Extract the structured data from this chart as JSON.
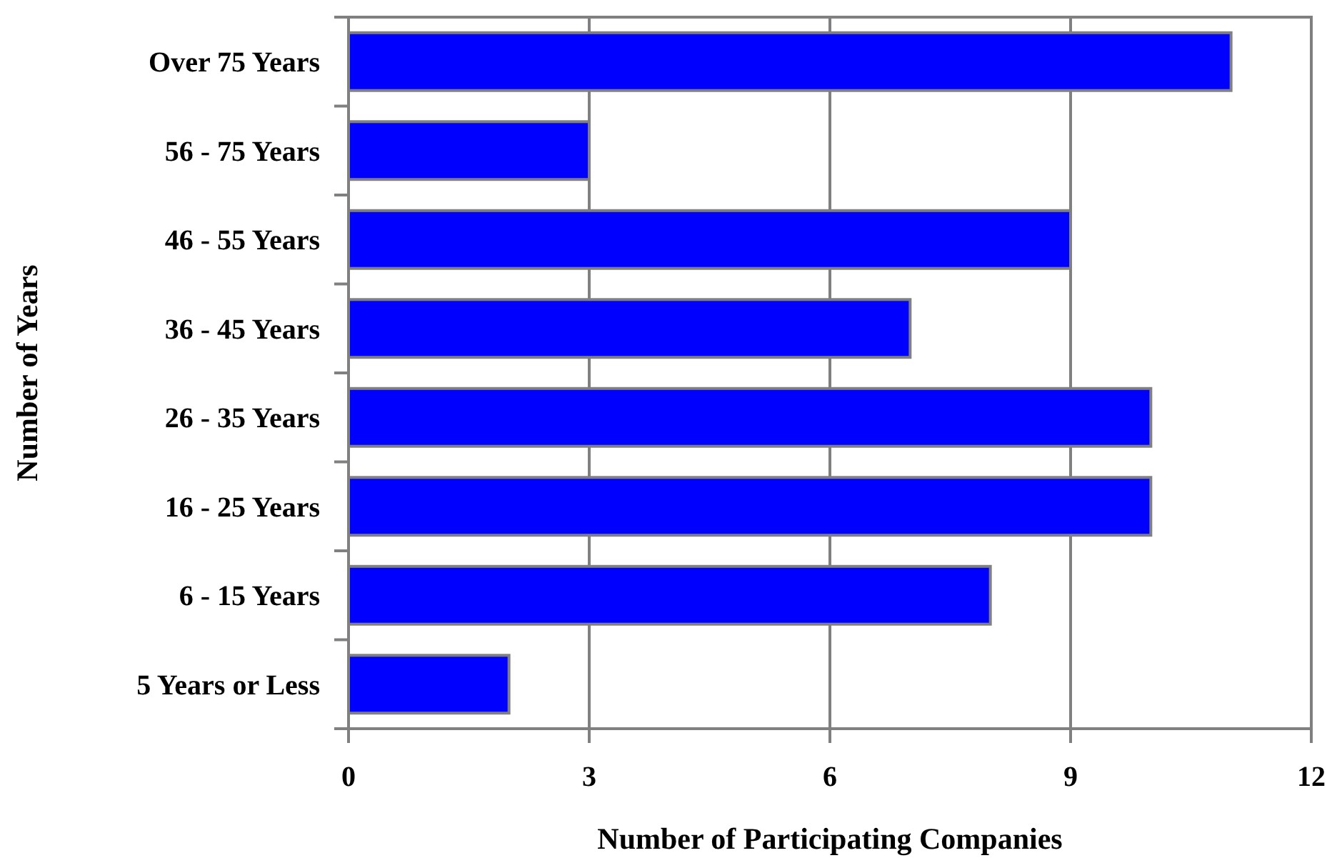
{
  "chart_data": {
    "type": "bar",
    "orientation": "horizontal",
    "xlabel": "Number of Participating Companies",
    "ylabel": "Number of Years",
    "categories": [
      "Over 75 Years",
      "56 - 75 Years",
      "46 - 55 Years",
      "36 - 45 Years",
      "26 - 35 Years",
      "16 - 25 Years",
      "6 - 15 Years",
      "5 Years or Less"
    ],
    "values": [
      11,
      3,
      9,
      7,
      10,
      10,
      8,
      2
    ],
    "color": "#0000ff",
    "xlim": [
      0,
      12
    ],
    "xticks": [
      0,
      3,
      6,
      9,
      12
    ],
    "grid": "x"
  }
}
